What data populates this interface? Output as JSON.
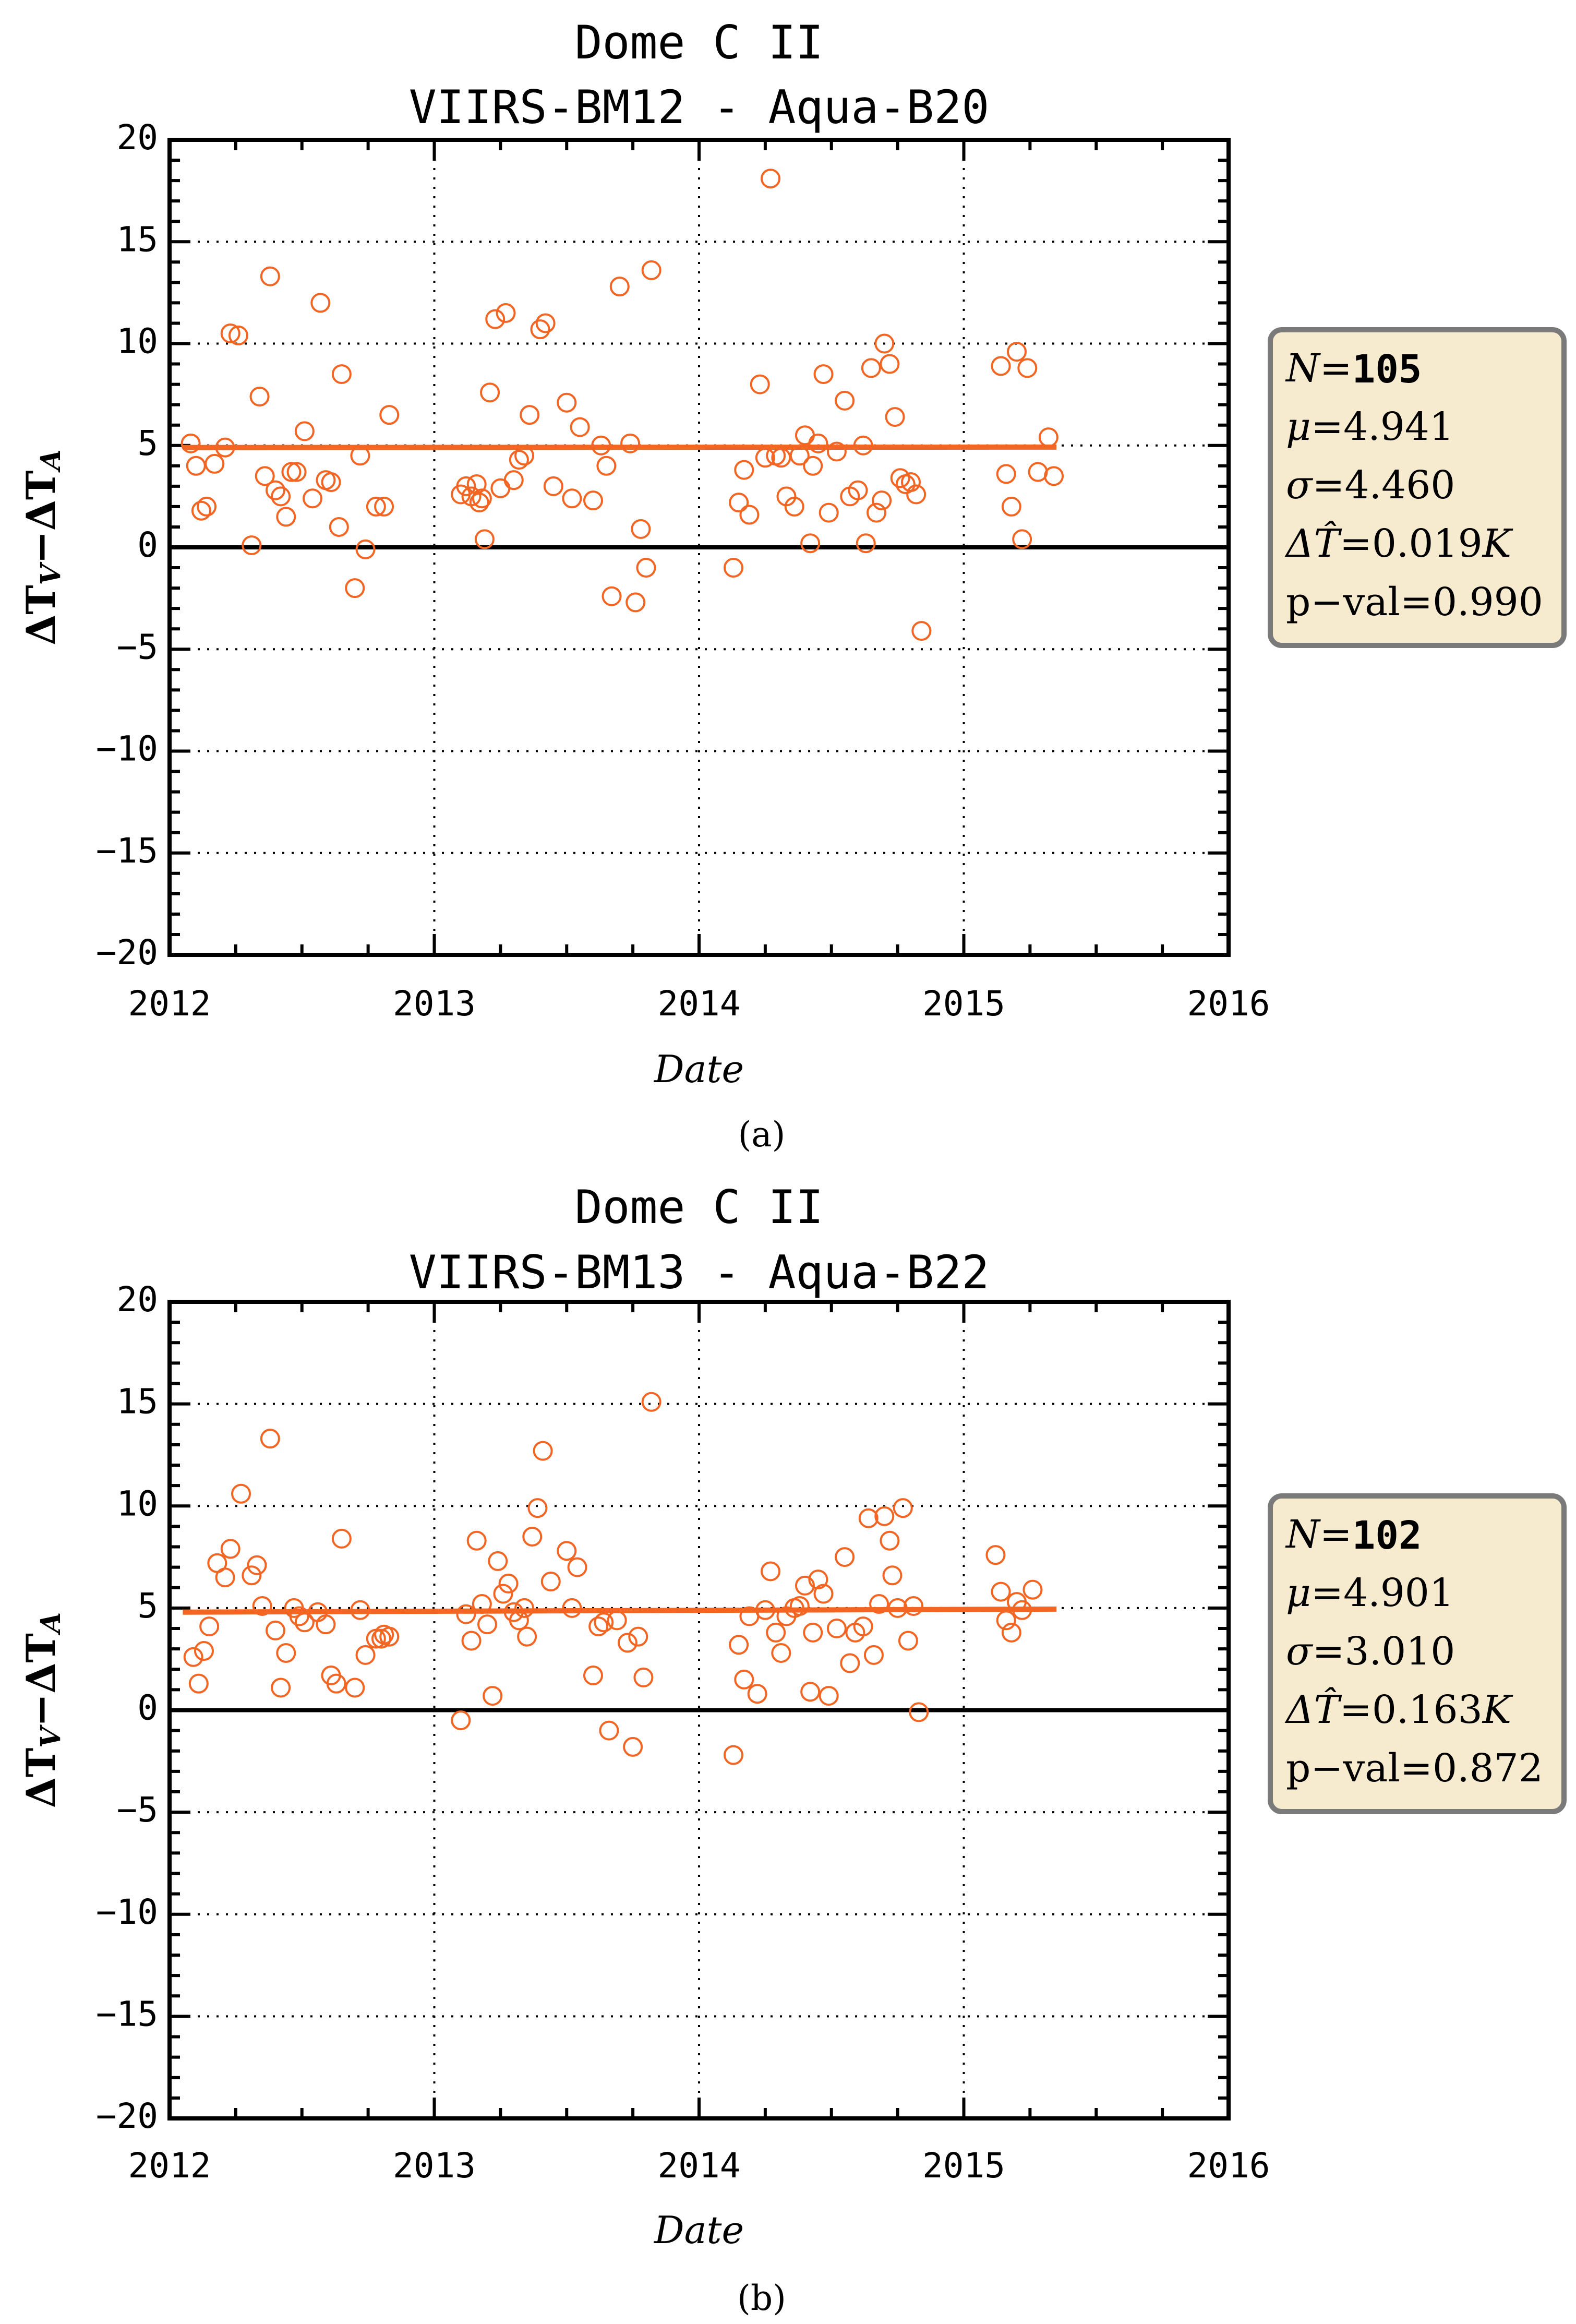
{
  "charts": [
    {
      "title_line1": "Dome C II",
      "title_line2": "VIIRS-BM12 - Aqua-B20",
      "xlabel": "Date",
      "ylabel_main": "ΔT",
      "ylabel_sub1": "V",
      "ylabel_minus": "−ΔT",
      "ylabel_sub2": "A",
      "caption": "(a)",
      "stats": {
        "n_label": "N",
        "n_value": "105",
        "mu_label": "μ",
        "mu_value": "4.941",
        "sigma_label": "σ",
        "sigma_value": "4.460",
        "dT_label": "ΔT̂",
        "dT_value": "0.019",
        "dT_unit": "K",
        "p_label": "p−val",
        "p_value": "0.990"
      }
    },
    {
      "title_line1": "Dome C II",
      "title_line2": "VIIRS-BM13 - Aqua-B22",
      "xlabel": "Date",
      "ylabel_main": "ΔT",
      "ylabel_sub1": "V",
      "ylabel_minus": "−ΔT",
      "ylabel_sub2": "A",
      "caption": "(b)",
      "stats": {
        "n_label": "N",
        "n_value": "102",
        "mu_label": "μ",
        "mu_value": "4.901",
        "sigma_label": "σ",
        "sigma_value": "3.010",
        "dT_label": "ΔT̂",
        "dT_value": "0.163",
        "dT_unit": "K",
        "p_label": "p−val",
        "p_value": "0.872"
      }
    }
  ],
  "chart_data": [
    {
      "type": "scatter",
      "title": "Dome C II / VIIRS-BM12 - Aqua-B20",
      "xlabel": "Date",
      "ylabel": "ΔT_V − ΔT_A",
      "xlim": [
        2012,
        2016
      ],
      "ylim": [
        -20,
        20
      ],
      "xticks": [
        2012,
        2013,
        2014,
        2015,
        2016
      ],
      "yticks": [
        -20,
        -15,
        -10,
        -5,
        0,
        5,
        10,
        15,
        20
      ],
      "grid": "dotted",
      "colors": {
        "points": "#f26522",
        "fit": "#f26522",
        "zero": "#000000",
        "box_bg": "#f7ebcf",
        "box_border": "#7a7a7a"
      },
      "fit_line": {
        "x": [
          2012.05,
          2015.35
        ],
        "y": [
          4.9,
          4.92
        ]
      },
      "zero_line": 0,
      "points": [
        [
          2012.08,
          5.1
        ],
        [
          2012.1,
          4.0
        ],
        [
          2012.12,
          1.8
        ],
        [
          2012.14,
          2.0
        ],
        [
          2012.17,
          4.1
        ],
        [
          2012.21,
          4.9
        ],
        [
          2012.23,
          10.5
        ],
        [
          2012.26,
          10.4
        ],
        [
          2012.31,
          0.1
        ],
        [
          2012.34,
          7.4
        ],
        [
          2012.36,
          3.5
        ],
        [
          2012.38,
          13.3
        ],
        [
          2012.4,
          2.8
        ],
        [
          2012.42,
          2.5
        ],
        [
          2012.44,
          1.5
        ],
        [
          2012.46,
          3.7
        ],
        [
          2012.48,
          3.7
        ],
        [
          2012.51,
          5.7
        ],
        [
          2012.54,
          2.4
        ],
        [
          2012.57,
          12.0
        ],
        [
          2012.59,
          3.3
        ],
        [
          2012.61,
          3.2
        ],
        [
          2012.64,
          1.0
        ],
        [
          2012.65,
          8.5
        ],
        [
          2012.7,
          -2.0
        ],
        [
          2012.72,
          4.5
        ],
        [
          2012.74,
          -0.1
        ],
        [
          2012.78,
          2.0
        ],
        [
          2012.81,
          2.0
        ],
        [
          2012.83,
          6.5
        ],
        [
          2013.1,
          2.6
        ],
        [
          2013.12,
          3.0
        ],
        [
          2013.14,
          2.5
        ],
        [
          2013.16,
          3.1
        ],
        [
          2013.18,
          2.4
        ],
        [
          2013.19,
          0.4
        ],
        [
          2013.21,
          7.6
        ],
        [
          2013.23,
          11.2
        ],
        [
          2013.25,
          2.9
        ],
        [
          2013.27,
          11.5
        ],
        [
          2013.3,
          3.3
        ],
        [
          2013.32,
          4.3
        ],
        [
          2013.34,
          4.5
        ],
        [
          2013.36,
          6.5
        ],
        [
          2013.4,
          10.7
        ],
        [
          2013.42,
          11.0
        ],
        [
          2013.45,
          3.0
        ],
        [
          2013.5,
          7.1
        ],
        [
          2013.52,
          2.4
        ],
        [
          2013.55,
          5.9
        ],
        [
          2013.6,
          2.3
        ],
        [
          2013.63,
          5.0
        ],
        [
          2013.65,
          4.0
        ],
        [
          2013.67,
          -2.4
        ],
        [
          2013.7,
          12.8
        ],
        [
          2013.74,
          5.1
        ],
        [
          2013.76,
          -2.7
        ],
        [
          2013.78,
          0.9
        ],
        [
          2013.8,
          -1.0
        ],
        [
          2013.82,
          13.6
        ],
        [
          2014.13,
          -1.0
        ],
        [
          2014.15,
          2.2
        ],
        [
          2014.17,
          3.8
        ],
        [
          2014.19,
          1.6
        ],
        [
          2014.23,
          8.0
        ],
        [
          2014.27,
          18.1
        ],
        [
          2014.29,
          4.5
        ],
        [
          2014.31,
          4.4
        ],
        [
          2014.33,
          2.5
        ],
        [
          2014.36,
          2.0
        ],
        [
          2014.38,
          4.5
        ],
        [
          2014.4,
          5.5
        ],
        [
          2014.42,
          0.2
        ],
        [
          2014.43,
          4.0
        ],
        [
          2014.45,
          5.1
        ],
        [
          2014.47,
          8.5
        ],
        [
          2014.49,
          1.7
        ],
        [
          2014.52,
          4.7
        ],
        [
          2014.55,
          7.2
        ],
        [
          2014.57,
          2.5
        ],
        [
          2014.6,
          2.8
        ],
        [
          2014.62,
          5.0
        ],
        [
          2014.63,
          0.2
        ],
        [
          2014.65,
          8.8
        ],
        [
          2014.67,
          1.7
        ],
        [
          2014.69,
          2.3
        ],
        [
          2014.7,
          10.0
        ],
        [
          2014.72,
          9.0
        ],
        [
          2014.74,
          6.4
        ],
        [
          2014.76,
          3.4
        ],
        [
          2014.78,
          3.1
        ],
        [
          2014.8,
          3.2
        ],
        [
          2014.82,
          2.6
        ],
        [
          2014.84,
          -4.1
        ],
        [
          2015.14,
          8.9
        ],
        [
          2015.16,
          3.6
        ],
        [
          2015.18,
          2.0
        ],
        [
          2015.2,
          9.6
        ],
        [
          2015.22,
          0.4
        ],
        [
          2015.24,
          8.8
        ],
        [
          2015.28,
          3.7
        ],
        [
          2015.32,
          5.4
        ],
        [
          2015.34,
          3.5
        ],
        [
          2014.25,
          4.4
        ],
        [
          2013.17,
          2.2
        ]
      ]
    },
    {
      "type": "scatter",
      "title": "Dome C II / VIIRS-BM13 - Aqua-B22",
      "xlabel": "Date",
      "ylabel": "ΔT_V − ΔT_A",
      "xlim": [
        2012,
        2016
      ],
      "ylim": [
        -20,
        20
      ],
      "xticks": [
        2012,
        2013,
        2014,
        2015,
        2016
      ],
      "yticks": [
        -20,
        -15,
        -10,
        -5,
        0,
        5,
        10,
        15,
        20
      ],
      "grid": "dotted",
      "colors": {
        "points": "#f26522",
        "fit": "#f26522",
        "zero": "#000000",
        "box_bg": "#f7ebcf",
        "box_border": "#7a7a7a"
      },
      "fit_line": {
        "x": [
          2012.05,
          2015.35
        ],
        "y": [
          4.8,
          4.95
        ]
      },
      "zero_line": 0,
      "points": [
        [
          2012.09,
          2.6
        ],
        [
          2012.11,
          1.3
        ],
        [
          2012.13,
          2.9
        ],
        [
          2012.15,
          4.1
        ],
        [
          2012.18,
          7.2
        ],
        [
          2012.21,
          6.5
        ],
        [
          2012.23,
          7.9
        ],
        [
          2012.27,
          10.6
        ],
        [
          2012.31,
          6.6
        ],
        [
          2012.33,
          7.1
        ],
        [
          2012.35,
          5.1
        ],
        [
          2012.38,
          13.3
        ],
        [
          2012.4,
          3.9
        ],
        [
          2012.42,
          1.1
        ],
        [
          2012.44,
          2.8
        ],
        [
          2012.47,
          5.0
        ],
        [
          2012.49,
          4.6
        ],
        [
          2012.51,
          4.3
        ],
        [
          2012.56,
          4.8
        ],
        [
          2012.59,
          4.2
        ],
        [
          2012.61,
          1.7
        ],
        [
          2012.63,
          1.3
        ],
        [
          2012.65,
          8.4
        ],
        [
          2012.7,
          1.1
        ],
        [
          2012.72,
          4.9
        ],
        [
          2012.74,
          2.7
        ],
        [
          2012.78,
          3.5
        ],
        [
          2012.8,
          3.5
        ],
        [
          2012.83,
          3.6
        ],
        [
          2012.81,
          3.7
        ],
        [
          2013.1,
          -0.5
        ],
        [
          2013.12,
          4.7
        ],
        [
          2013.14,
          3.4
        ],
        [
          2013.16,
          8.3
        ],
        [
          2013.18,
          5.2
        ],
        [
          2013.2,
          4.2
        ],
        [
          2013.22,
          0.7
        ],
        [
          2013.24,
          7.3
        ],
        [
          2013.26,
          5.7
        ],
        [
          2013.28,
          6.2
        ],
        [
          2013.3,
          4.8
        ],
        [
          2013.32,
          4.4
        ],
        [
          2013.34,
          5.0
        ],
        [
          2013.35,
          3.6
        ],
        [
          2013.37,
          8.5
        ],
        [
          2013.39,
          9.9
        ],
        [
          2013.41,
          12.7
        ],
        [
          2013.44,
          6.3
        ],
        [
          2013.5,
          7.8
        ],
        [
          2013.52,
          5.0
        ],
        [
          2013.54,
          7.0
        ],
        [
          2013.6,
          1.7
        ],
        [
          2013.62,
          4.1
        ],
        [
          2013.64,
          4.3
        ],
        [
          2013.66,
          -1.0
        ],
        [
          2013.69,
          4.4
        ],
        [
          2013.73,
          3.3
        ],
        [
          2013.75,
          -1.8
        ],
        [
          2013.77,
          3.6
        ],
        [
          2013.79,
          1.6
        ],
        [
          2013.82,
          15.1
        ],
        [
          2014.13,
          -2.2
        ],
        [
          2014.15,
          3.2
        ],
        [
          2014.17,
          1.5
        ],
        [
          2014.19,
          4.6
        ],
        [
          2014.22,
          0.8
        ],
        [
          2014.25,
          4.9
        ],
        [
          2014.27,
          6.8
        ],
        [
          2014.29,
          3.8
        ],
        [
          2014.31,
          2.8
        ],
        [
          2014.33,
          4.6
        ],
        [
          2014.36,
          5.0
        ],
        [
          2014.38,
          5.1
        ],
        [
          2014.4,
          6.1
        ],
        [
          2014.42,
          0.9
        ],
        [
          2014.43,
          3.8
        ],
        [
          2014.45,
          6.4
        ],
        [
          2014.47,
          5.7
        ],
        [
          2014.49,
          0.7
        ],
        [
          2014.52,
          4.0
        ],
        [
          2014.55,
          7.5
        ],
        [
          2014.57,
          2.3
        ],
        [
          2014.59,
          3.8
        ],
        [
          2014.62,
          4.1
        ],
        [
          2014.64,
          9.4
        ],
        [
          2014.66,
          2.7
        ],
        [
          2014.68,
          5.2
        ],
        [
          2014.7,
          9.5
        ],
        [
          2014.72,
          8.3
        ],
        [
          2014.73,
          6.6
        ],
        [
          2014.75,
          5.0
        ],
        [
          2014.77,
          9.9
        ],
        [
          2014.79,
          3.4
        ],
        [
          2014.81,
          5.1
        ],
        [
          2014.83,
          -0.1
        ],
        [
          2015.12,
          7.6
        ],
        [
          2015.14,
          5.8
        ],
        [
          2015.16,
          4.4
        ],
        [
          2015.18,
          3.8
        ],
        [
          2015.2,
          5.3
        ],
        [
          2015.22,
          4.9
        ],
        [
          2015.26,
          5.9
        ]
      ]
    }
  ]
}
